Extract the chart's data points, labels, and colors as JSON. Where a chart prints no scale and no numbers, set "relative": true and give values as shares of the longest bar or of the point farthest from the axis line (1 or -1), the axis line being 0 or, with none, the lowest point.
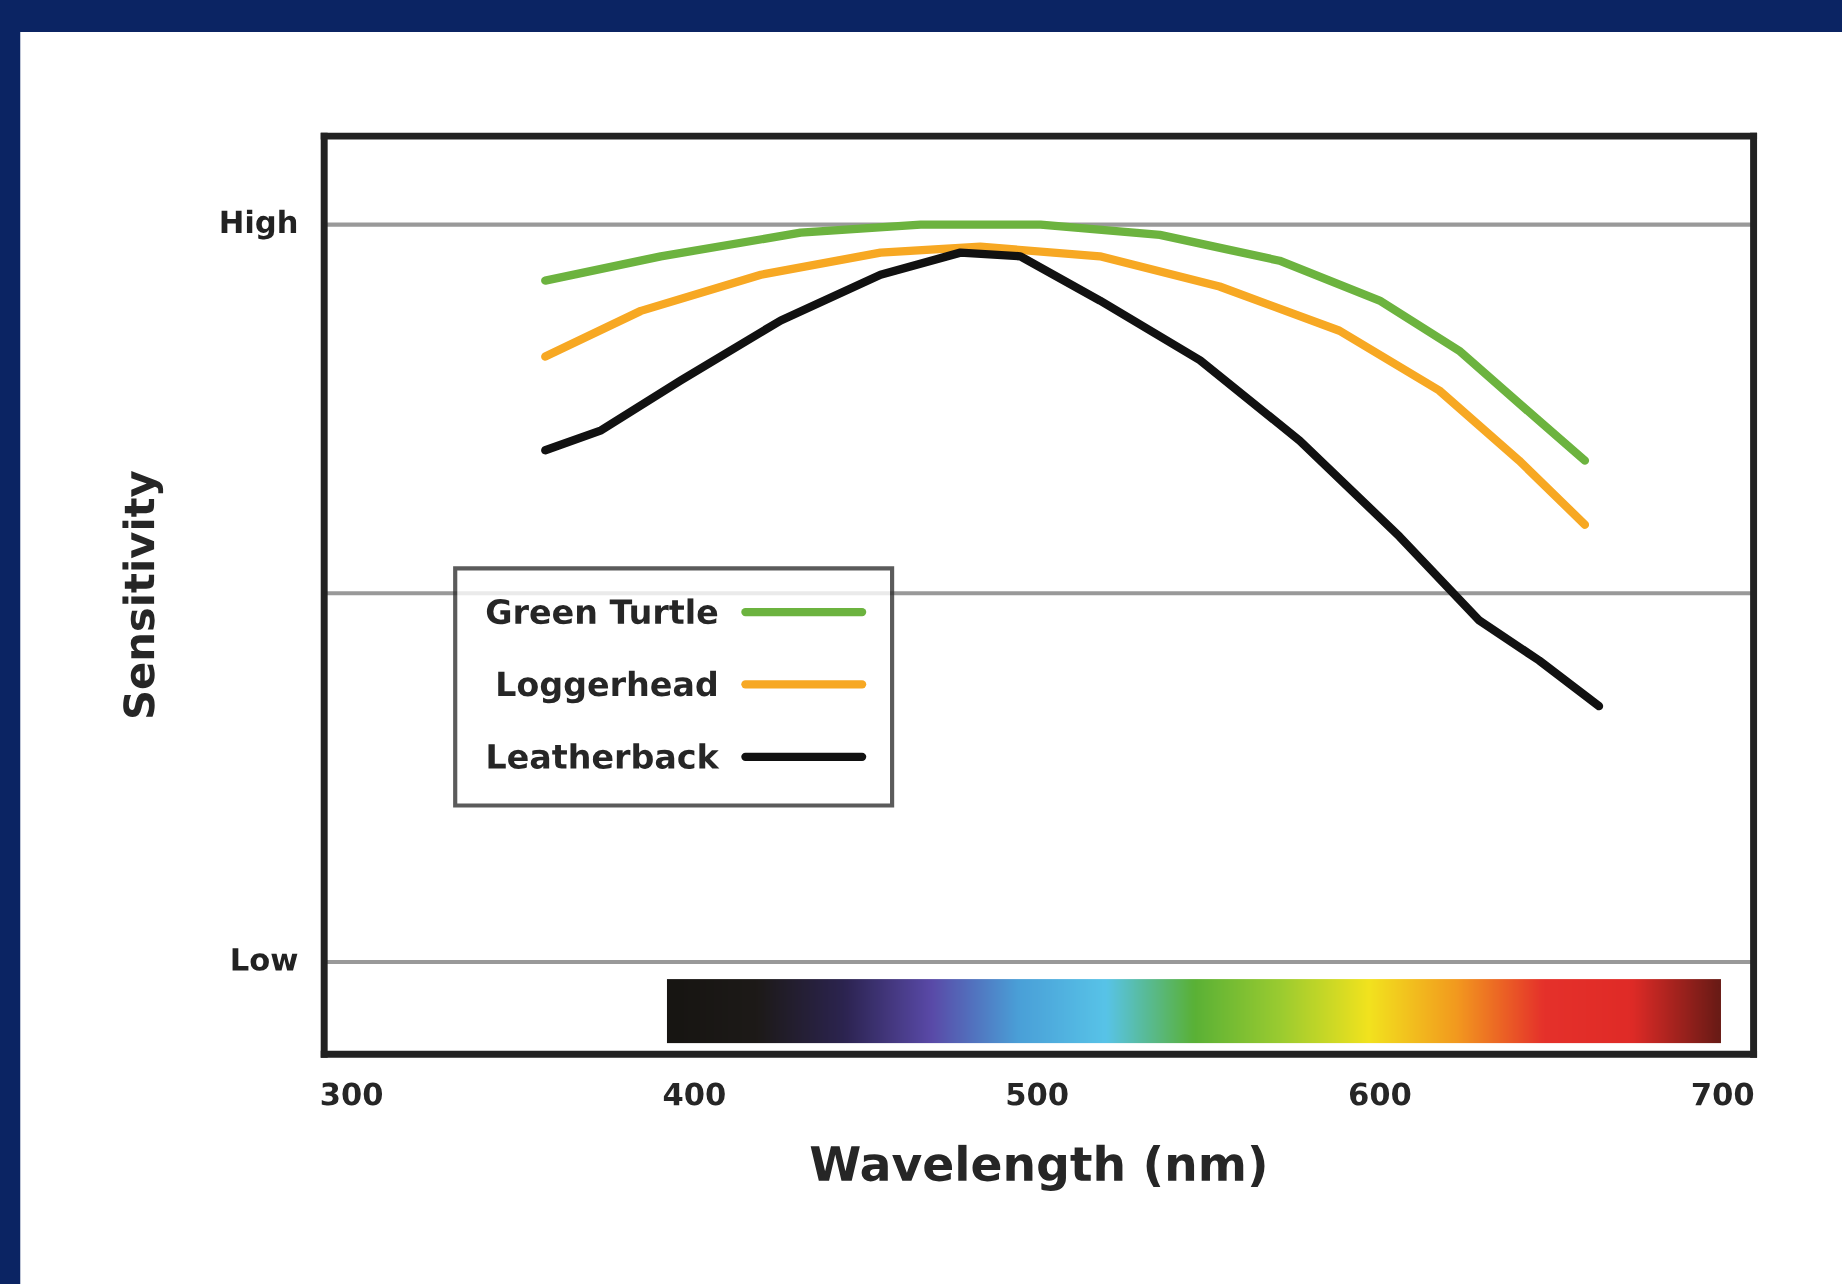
{
  "chart_data": {
    "type": "line",
    "xlabel": "Wavelength (nm)",
    "ylabel": "Sensitivity",
    "xlim": [
      292,
      709
    ],
    "xticks": [
      300,
      400,
      500,
      600,
      700
    ],
    "relative": true,
    "ref_lines": [
      {
        "axis": "y",
        "value": 0,
        "label": "Low",
        "color": "#999999"
      },
      {
        "axis": "y",
        "value": 0.5,
        "color": "#999999"
      },
      {
        "axis": "y",
        "value": 1,
        "label": "High",
        "color": "#999999"
      }
    ],
    "legend": "left",
    "marker": "none",
    "line_style": "solid",
    "series": [
      {
        "name": "Green Turtle",
        "color": "#6cb33f",
        "x": [
          356.5,
          390.2,
          431,
          466,
          501,
          535.8,
          570.7,
          599.9,
          623.1,
          646.4,
          659.8
        ],
        "values": [
          0.924,
          0.957,
          0.989,
          1.0,
          1.0,
          0.986,
          0.951,
          0.897,
          0.829,
          0.734,
          0.68
        ]
      },
      {
        "name": "Loggerhead",
        "color": "#f7a823",
        "x": [
          356.5,
          384.4,
          419.4,
          454.3,
          483.4,
          518.3,
          553.2,
          588.2,
          617.3,
          640.6,
          659.8
        ],
        "values": [
          0.821,
          0.883,
          0.932,
          0.962,
          0.97,
          0.957,
          0.916,
          0.856,
          0.775,
          0.68,
          0.593
        ]
      },
      {
        "name": "Leatherback",
        "color": "#111111",
        "x": [
          356.5,
          372.8,
          396.1,
          425.2,
          454.3,
          477.6,
          495.1,
          518.3,
          547.5,
          576.6,
          605.7,
          629,
          646.4,
          663.9
        ],
        "values": [
          0.694,
          0.721,
          0.789,
          0.87,
          0.932,
          0.962,
          0.957,
          0.897,
          0.816,
          0.707,
          0.577,
          0.463,
          0.409,
          0.347
        ]
      }
    ]
  }
}
